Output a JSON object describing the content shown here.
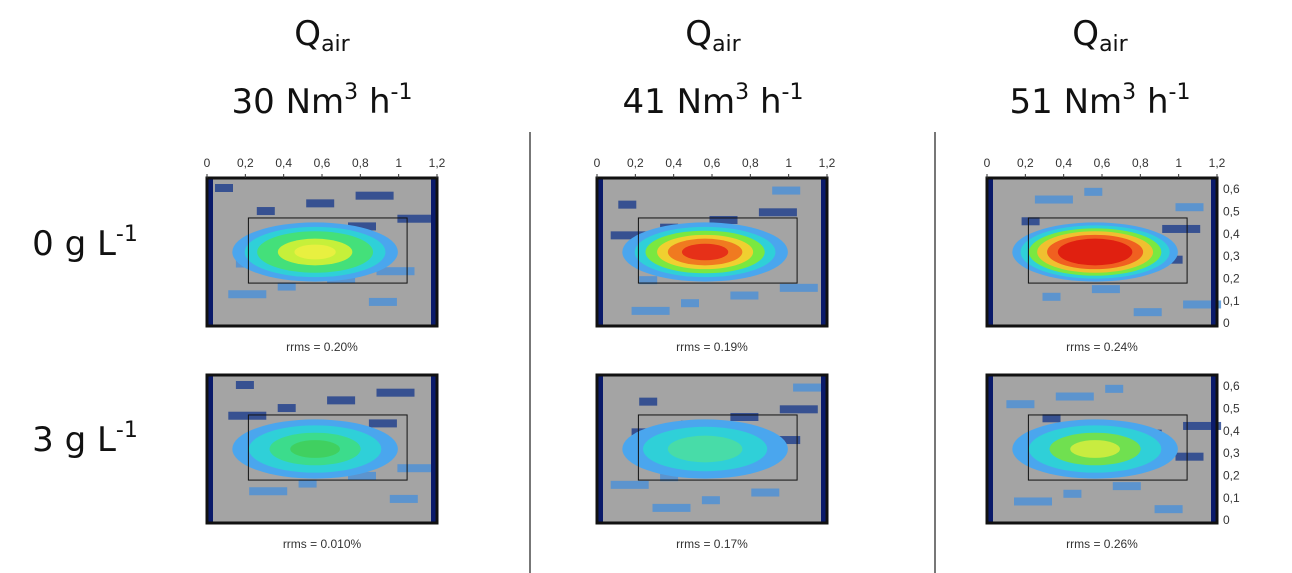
{
  "columns": [
    {
      "q": "Q",
      "q_sub": "air",
      "flow": "30 Nm",
      "flow_sup": "3",
      "unit": " h",
      "unit_sup": "-1"
    },
    {
      "q": "Q",
      "q_sub": "air",
      "flow": "41 Nm",
      "flow_sup": "3",
      "unit": " h",
      "unit_sup": "-1"
    },
    {
      "q": "Q",
      "q_sub": "air",
      "flow": "51 Nm",
      "flow_sup": "3",
      "unit": " h",
      "unit_sup": "-1"
    }
  ],
  "rows": [
    {
      "label": "0 g L",
      "label_sup": "-1"
    },
    {
      "label": "3 g L",
      "label_sup": "-1"
    }
  ],
  "x_ticks": [
    "0",
    "0,2",
    "0,4",
    "0,6",
    "0,8",
    "1",
    "1,2"
  ],
  "y_ticks": [
    "0,6",
    "0,5",
    "0,4",
    "0,3",
    "0,2",
    "0,1",
    "0"
  ],
  "rrms": [
    [
      "rrms = 0.20%",
      "rrms = 0.19%",
      "rrms = 0.24%"
    ],
    [
      "rrms = 0.010%",
      "rrms = 0.17%",
      "rrms = 0.26%"
    ]
  ]
}
